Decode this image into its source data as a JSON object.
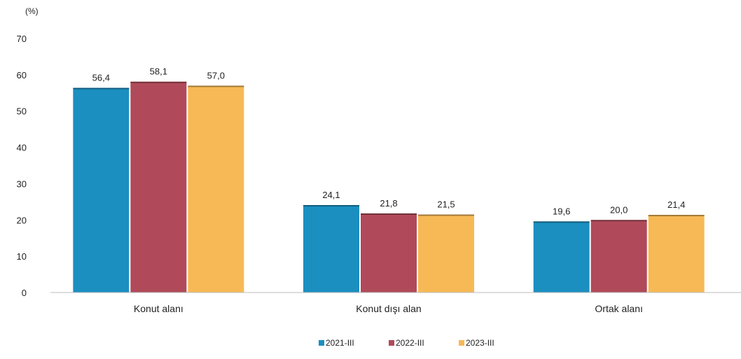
{
  "chart_data": {
    "type": "bar",
    "unit_label": "(%)",
    "categories": [
      "Konut alanı",
      "Konut dışı alan",
      "Ortak alanı"
    ],
    "series": [
      {
        "name": "2021-III",
        "color": "#1b8fc0",
        "values": [
          56.4,
          24.1,
          19.6
        ],
        "labels": [
          "56,4",
          "24,1",
          "19,6"
        ]
      },
      {
        "name": "2022-III",
        "color": "#b04a5a",
        "values": [
          58.1,
          21.8,
          20.0
        ],
        "labels": [
          "58,1",
          "21,8",
          "20,0"
        ]
      },
      {
        "name": "2023-III",
        "color": "#f7b955",
        "values": [
          57.0,
          21.5,
          21.4
        ],
        "labels": [
          "57,0",
          "21,5",
          "21,4"
        ]
      }
    ],
    "ylim": [
      0,
      70
    ],
    "yticks": [
      0,
      10,
      20,
      30,
      40,
      50,
      60,
      70
    ],
    "grid": false,
    "legend_position": "bottom"
  }
}
